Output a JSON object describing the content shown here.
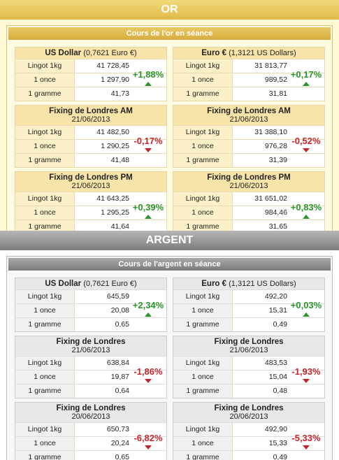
{
  "sections": [
    {
      "title": "OR",
      "subtitle": "Cours de l'or en séance",
      "panels": [
        {
          "title": "US Dollar",
          "note": "(0,7621 Euro €)",
          "rows": [
            {
              "label": "Lingot 1kg",
              "value": "41 728,45"
            },
            {
              "label": "1 once",
              "value": "1 297,90"
            },
            {
              "label": "1 gramme",
              "value": "41,73"
            }
          ],
          "change": "+1,88%"
        },
        {
          "title": "Euro €",
          "note": "(1,3121 US Dollars)",
          "rows": [
            {
              "label": "Lingot 1kg",
              "value": "31 813,77"
            },
            {
              "label": "1 once",
              "value": "989,52"
            },
            {
              "label": "1 gramme",
              "value": "31,81"
            }
          ],
          "change": "+0,17%"
        },
        {
          "title": "Fixing de Londres AM",
          "date": "21/06/2013",
          "rows": [
            {
              "label": "Lingot 1kg",
              "value": "41 482,50"
            },
            {
              "label": "1 once",
              "value": "1 290,25"
            },
            {
              "label": "1 gramme",
              "value": "41,48"
            }
          ],
          "change": "-0,17%"
        },
        {
          "title": "Fixing de Londres AM",
          "date": "21/06/2013",
          "rows": [
            {
              "label": "Lingot 1kg",
              "value": "31 388,10"
            },
            {
              "label": "1 once",
              "value": "976,28"
            },
            {
              "label": "1 gramme",
              "value": "31,39"
            }
          ],
          "change": "-0,52%"
        },
        {
          "title": "Fixing de Londres PM",
          "date": "21/06/2013",
          "rows": [
            {
              "label": "Lingot 1kg",
              "value": "41 643,25"
            },
            {
              "label": "1 once",
              "value": "1 295,25"
            },
            {
              "label": "1 gramme",
              "value": "41,64"
            }
          ],
          "change": "+0,39%"
        },
        {
          "title": "Fixing de Londres PM",
          "date": "21/06/2013",
          "rows": [
            {
              "label": "Lingot 1kg",
              "value": "31 651,02"
            },
            {
              "label": "1 once",
              "value": "984,46"
            },
            {
              "label": "1 gramme",
              "value": "31,65"
            }
          ],
          "change": "+0,83%"
        }
      ]
    },
    {
      "title": "ARGENT",
      "subtitle": "Cours de l'argent en séance",
      "panels": [
        {
          "title": "US Dollar",
          "note": "(0,7621 Euro €)",
          "rows": [
            {
              "label": "Lingot 1kg",
              "value": "645,59"
            },
            {
              "label": "1 once",
              "value": "20,08"
            },
            {
              "label": "1 gramme",
              "value": "0,65"
            }
          ],
          "change": "+2,34%"
        },
        {
          "title": "Euro €",
          "note": "(1,3121 US Dollars)",
          "rows": [
            {
              "label": "Lingot 1kg",
              "value": "492,20"
            },
            {
              "label": "1 once",
              "value": "15,31"
            },
            {
              "label": "1 gramme",
              "value": "0,49"
            }
          ],
          "change": "+0,03%"
        },
        {
          "title": "Fixing de Londres",
          "date": "21/06/2013",
          "rows": [
            {
              "label": "Lingot 1kg",
              "value": "638,84"
            },
            {
              "label": "1 once",
              "value": "19,87"
            },
            {
              "label": "1 gramme",
              "value": "0,64"
            }
          ],
          "change": "-1,86%"
        },
        {
          "title": "Fixing de Londres",
          "date": "21/06/2013",
          "rows": [
            {
              "label": "Lingot 1kg",
              "value": "483,53"
            },
            {
              "label": "1 once",
              "value": "15,04"
            },
            {
              "label": "1 gramme",
              "value": "0,48"
            }
          ],
          "change": "-1,93%"
        },
        {
          "title": "Fixing de Londres",
          "date": "20/06/2013",
          "rows": [
            {
              "label": "Lingot 1kg",
              "value": "650,73"
            },
            {
              "label": "1 once",
              "value": "20,24"
            },
            {
              "label": "1 gramme",
              "value": "0,65"
            }
          ],
          "change": "-6,82%"
        },
        {
          "title": "Fixing de Londres",
          "date": "20/06/2013",
          "rows": [
            {
              "label": "Lingot 1kg",
              "value": "492,90"
            },
            {
              "label": "1 once",
              "value": "15,33"
            },
            {
              "label": "1 gramme",
              "value": "0,49"
            }
          ],
          "change": "-5,33%"
        }
      ]
    }
  ]
}
